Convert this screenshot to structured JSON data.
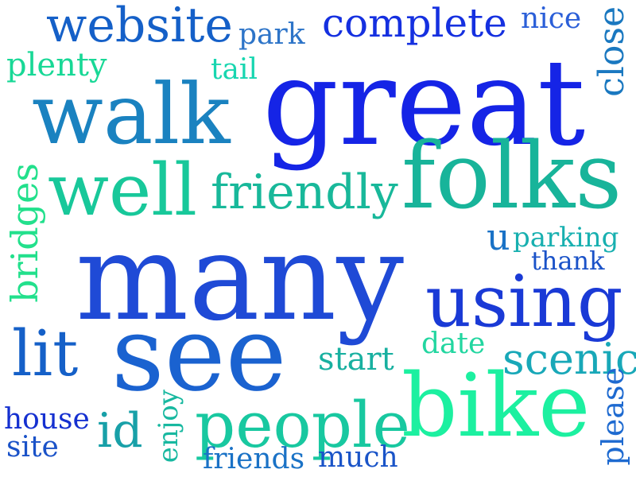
{
  "words": {
    "website": {
      "text": "website",
      "color": "#1560c8"
    },
    "park": {
      "text": "park",
      "color": "#2d74c8"
    },
    "complete": {
      "text": "complete",
      "color": "#1530e0"
    },
    "nice": {
      "text": "nice",
      "color": "#2b5fd8"
    },
    "plenty": {
      "text": "plenty",
      "color": "#18d896"
    },
    "tail": {
      "text": "tail",
      "color": "#18d6b0"
    },
    "great": {
      "text": "great",
      "color": "#1524e6"
    },
    "walk": {
      "text": "walk",
      "color": "#1a82c0"
    },
    "close": {
      "text": "close",
      "color": "#1a78c0"
    },
    "well": {
      "text": "well",
      "color": "#18c89a"
    },
    "friendly": {
      "text": "friendly",
      "color": "#18b89a"
    },
    "folks": {
      "text": "folks",
      "color": "#18b49a"
    },
    "bridges": {
      "text": "bridges",
      "color": "#22e08c"
    },
    "u": {
      "text": "u",
      "color": "#1a72c6"
    },
    "parking": {
      "text": "parking",
      "color": "#18b0b0"
    },
    "thank": {
      "text": "thank",
      "color": "#1a52c8"
    },
    "many": {
      "text": "many",
      "color": "#1f4ad6"
    },
    "using": {
      "text": "using",
      "color": "#1a3ad6"
    },
    "see": {
      "text": "see",
      "color": "#1a62d0"
    },
    "lit": {
      "text": "lit",
      "color": "#1560c8"
    },
    "date": {
      "text": "date",
      "color": "#22d6a0"
    },
    "start": {
      "text": "start",
      "color": "#18b0a0"
    },
    "scenic": {
      "text": "scenic",
      "color": "#18a8b8"
    },
    "bike": {
      "text": "bike",
      "color": "#1cf0a0"
    },
    "please": {
      "text": "please",
      "color": "#1e6ad0"
    },
    "house": {
      "text": "house",
      "color": "#1530d0"
    },
    "id": {
      "text": "id",
      "color": "#18a0a8"
    },
    "enjoy": {
      "text": "enjoy",
      "color": "#18b8a0"
    },
    "people": {
      "text": "people",
      "color": "#18c8a0"
    },
    "site": {
      "text": "site",
      "color": "#1a52c8"
    },
    "friends": {
      "text": "friends",
      "color": "#1a72c6"
    },
    "much": {
      "text": "much",
      "color": "#1a54c8"
    }
  }
}
